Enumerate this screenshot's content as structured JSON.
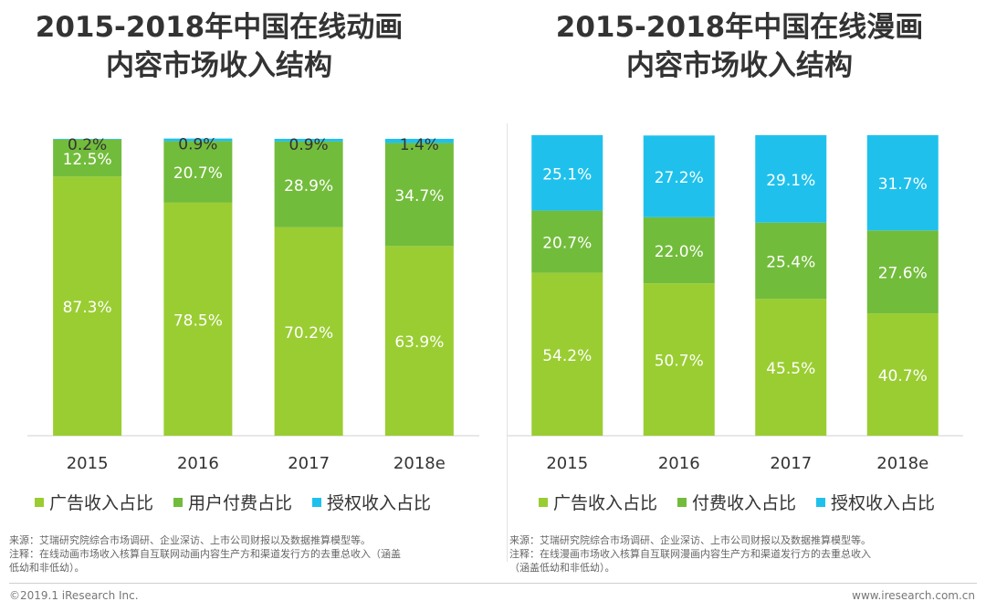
{
  "chart_data": [
    {
      "type": "bar",
      "stacked": true,
      "title": "2015-2018年中国在线动画内容市场收入结构",
      "title_lines": [
        "2015-2018年中国在线动画",
        "内容市场收入结构"
      ],
      "categories": [
        "2015",
        "2016",
        "2017",
        "2018e"
      ],
      "series": [
        {
          "name": "广告收入占比",
          "color": "#9ACD32",
          "values": [
            87.3,
            78.5,
            70.2,
            63.9
          ]
        },
        {
          "name": "用户付费占比",
          "color": "#72BC3B",
          "values": [
            12.5,
            20.7,
            28.9,
            34.7
          ]
        },
        {
          "name": "授权收入占比",
          "color": "#1FC1EC",
          "values": [
            0.2,
            0.9,
            0.9,
            1.4
          ]
        }
      ],
      "data_labels": [
        [
          "87.3%",
          "78.5%",
          "70.2%",
          "63.9%"
        ],
        [
          "12.5%",
          "20.7%",
          "28.9%",
          "34.7%"
        ],
        [
          "0.2%",
          "0.9%",
          "0.9%",
          "1.4%"
        ]
      ],
      "xlabel": "",
      "ylabel": "",
      "ylim": [
        0,
        100
      ],
      "legend_position": "bottom",
      "notes": [
        "来源：艾瑞研究院综合市场调研、企业深访、上市公司财报以及数据推算模型等。",
        "注释：在线动画市场收入核算自互联网动画内容生产方和渠道发行方的去重总收入（涵盖",
        "低幼和非低幼）。"
      ]
    },
    {
      "type": "bar",
      "stacked": true,
      "title": "2015-2018年中国在线漫画内容市场收入结构",
      "title_lines": [
        "2015-2018年中国在线漫画",
        "内容市场收入结构"
      ],
      "categories": [
        "2015",
        "2016",
        "2017",
        "2018e"
      ],
      "series": [
        {
          "name": "广告收入占比",
          "color": "#9ACD32",
          "values": [
            54.2,
            50.7,
            45.5,
            40.7
          ]
        },
        {
          "name": "付费收入占比",
          "color": "#72BC3B",
          "values": [
            20.7,
            22.0,
            25.4,
            27.6
          ]
        },
        {
          "name": "授权收入占比",
          "color": "#1FC1EC",
          "values": [
            25.1,
            27.2,
            29.1,
            31.7
          ]
        }
      ],
      "data_labels": [
        [
          "54.2%",
          "50.7%",
          "45.5%",
          "40.7%"
        ],
        [
          "20.7%",
          "22.0%",
          "25.4%",
          "27.6%"
        ],
        [
          "25.1%",
          "27.2%",
          "29.1%",
          "31.7%"
        ]
      ],
      "xlabel": "",
      "ylabel": "",
      "ylim": [
        0,
        100
      ],
      "legend_position": "bottom",
      "notes": [
        "来源：艾瑞研究院综合市场调研、企业深访、上市公司财报以及数据推算模型等。",
        "注释：在线漫画市场收入核算自互联网漫画内容生产方和渠道发行方的去重总收入",
        "（涵盖低幼和非低幼）。"
      ]
    }
  ],
  "footer": {
    "copyright": "©2019.1 iResearch Inc.",
    "website": "www.iresearch.com.cn"
  }
}
